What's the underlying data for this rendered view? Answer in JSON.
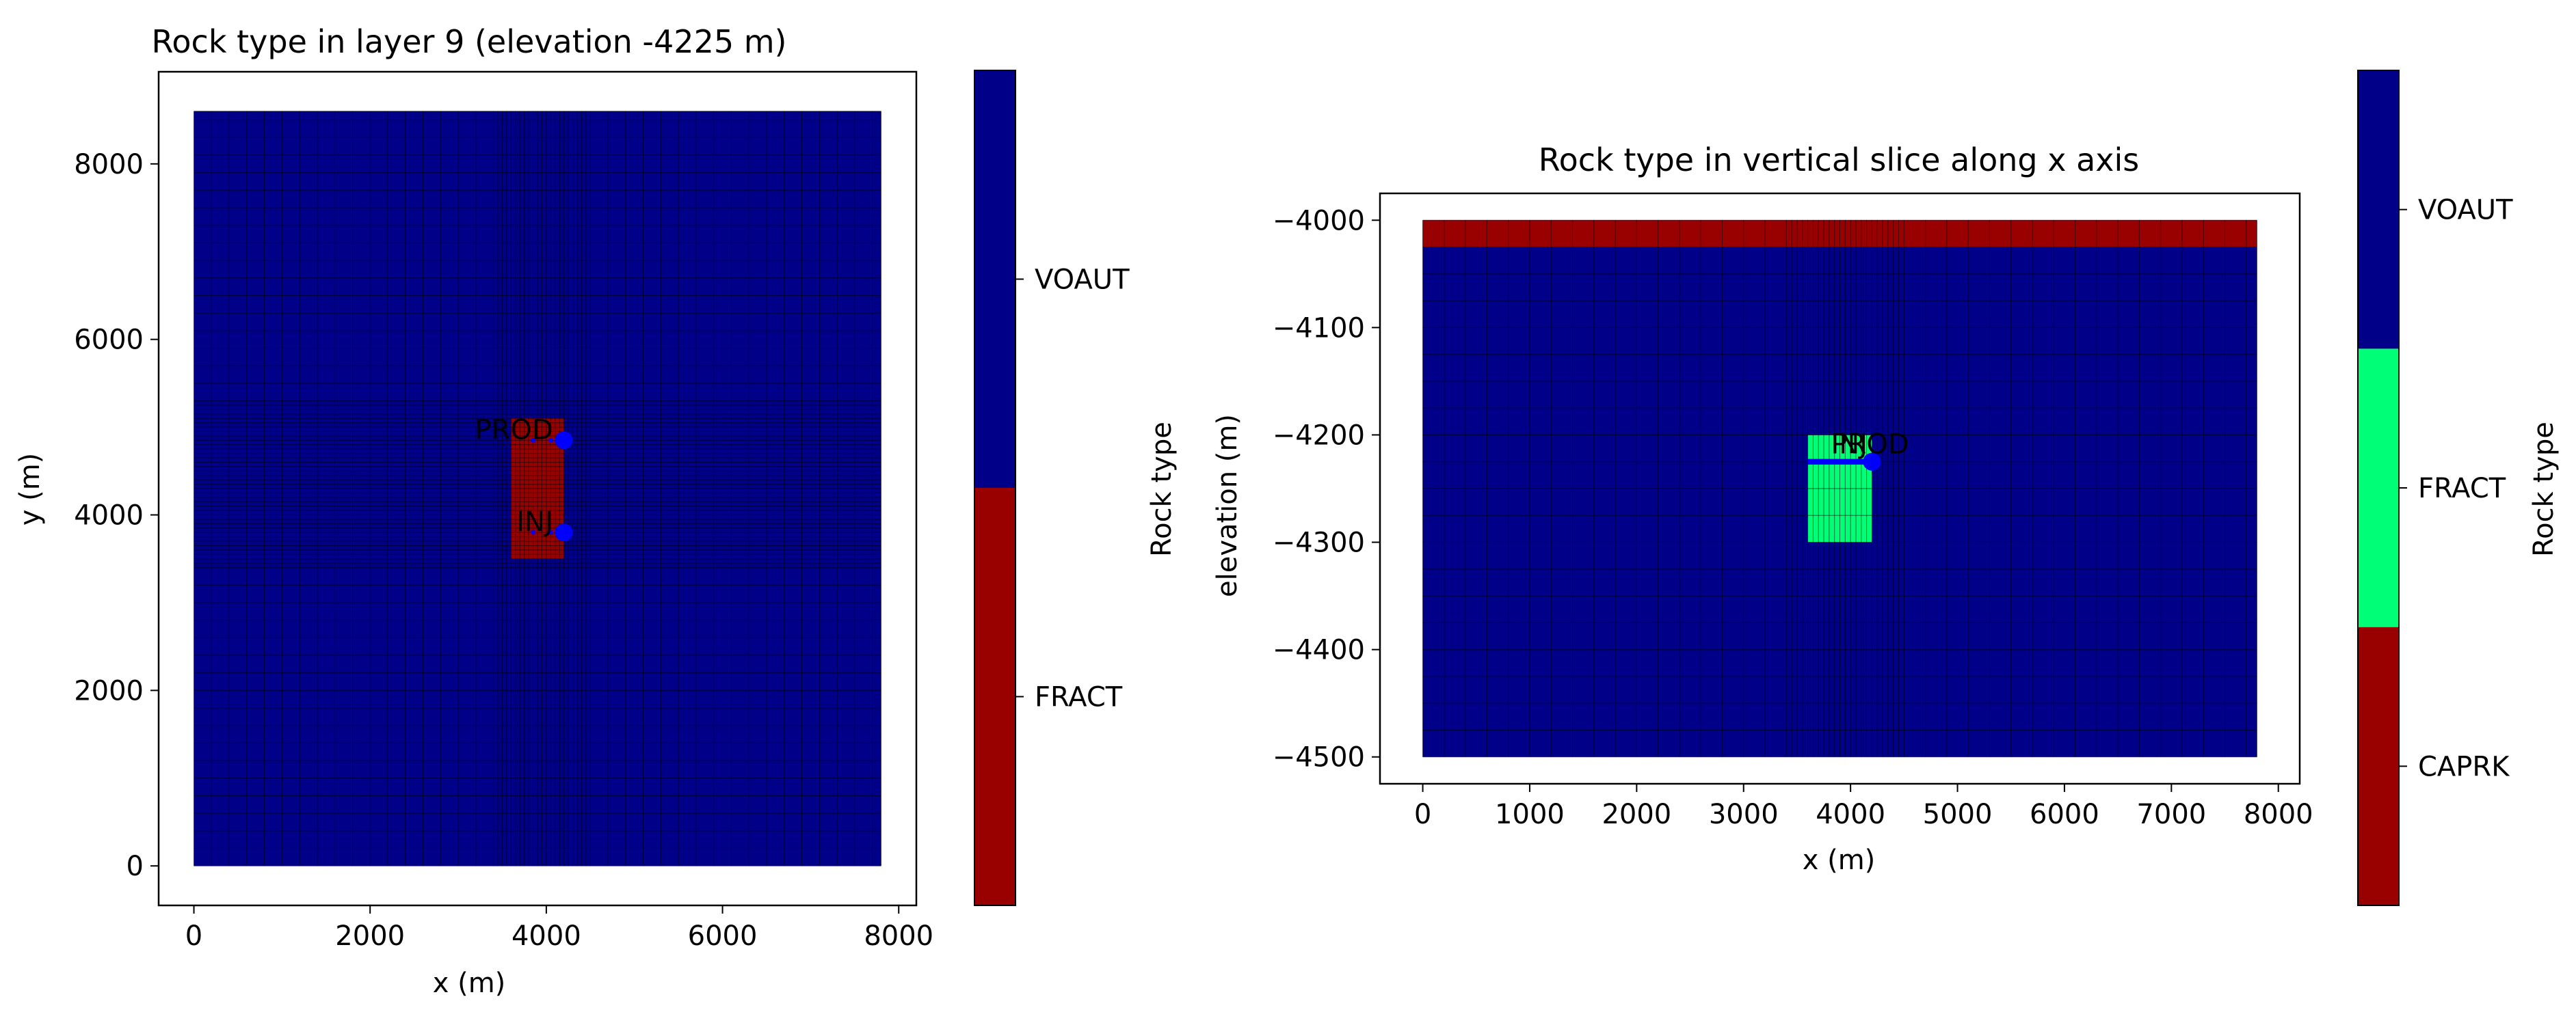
{
  "chart_data": [
    {
      "type": "heatmap",
      "title": "Rock type in layer  9 (elevation -4225 m)",
      "xlabel": "x (m)",
      "ylabel": "y (m)",
      "xlim": [
        -400,
        8200
      ],
      "ylim": [
        -450,
        9050
      ],
      "xticks": [
        0,
        2000,
        4000,
        6000,
        8000
      ],
      "yticks": [
        0,
        2000,
        4000,
        6000,
        8000
      ],
      "grid_extent": {
        "x": [
          0,
          7800
        ],
        "y": [
          0,
          8600
        ]
      },
      "zones": [
        {
          "rock": "FRACT",
          "x": [
            3600,
            4200
          ],
          "y": [
            3500,
            5100
          ]
        }
      ],
      "background_rock": "VOAUT",
      "wells": [
        {
          "name": "PROD",
          "x": 4200,
          "y": 4850
        },
        {
          "name": "INJ",
          "x": 4200,
          "y": 3800
        }
      ],
      "colorbar": {
        "label": "Rock type",
        "entries": [
          {
            "name": "FRACT",
            "color": "#990000"
          },
          {
            "name": "VOAUT",
            "color": "#000088"
          }
        ]
      }
    },
    {
      "type": "heatmap",
      "title": "Rock type in vertical slice along x axis",
      "xlabel": "x (m)",
      "ylabel": "elevation (m)",
      "xlim": [
        -400,
        8200
      ],
      "ylim": [
        -4525,
        -3975
      ],
      "xticks": [
        0,
        1000,
        2000,
        3000,
        4000,
        5000,
        6000,
        7000,
        8000
      ],
      "yticks": [
        -4000,
        -4100,
        -4200,
        -4300,
        -4400,
        -4500
      ],
      "grid_extent": {
        "x": [
          0,
          7800
        ],
        "y": [
          -4500,
          -4000
        ]
      },
      "zones": [
        {
          "rock": "CAPRK",
          "x": [
            0,
            7800
          ],
          "y": [
            -4025,
            -4000
          ]
        },
        {
          "rock": "FRACT",
          "x": [
            3600,
            4200
          ],
          "y": [
            -4300,
            -4200
          ]
        }
      ],
      "background_rock": "VOAUT",
      "wells": [
        {
          "name": "PROD",
          "x": 4200,
          "y": -4225
        },
        {
          "name": "INJ",
          "x": 4200,
          "y": -4225
        }
      ],
      "colorbar": {
        "label": "Rock type",
        "entries": [
          {
            "name": "CAPRK",
            "color": "#990000"
          },
          {
            "name": "FRACT",
            "color": "#00ff77"
          },
          {
            "name": "VOAUT",
            "color": "#000088"
          }
        ]
      }
    }
  ],
  "colors": {
    "well_marker": "#0000ff",
    "grid_line": "#000000"
  }
}
